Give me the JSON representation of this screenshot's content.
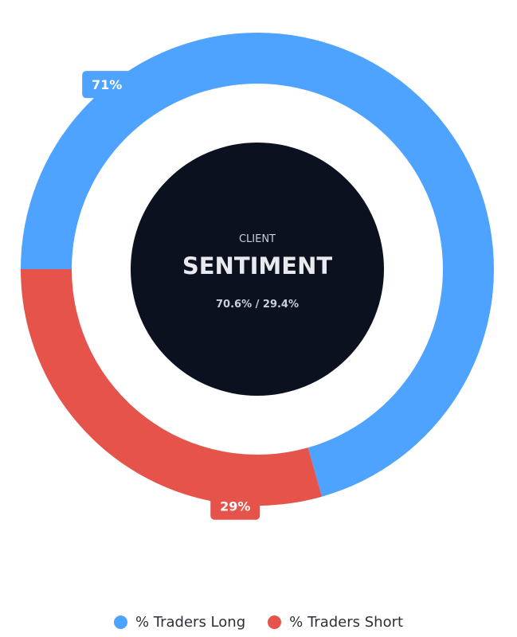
{
  "chart_data": {
    "type": "pie",
    "variant": "doughnut",
    "series": [
      {
        "name": "% Traders Long",
        "value": 70.6,
        "label": "71%",
        "color": "#4da3ff"
      },
      {
        "name": "% Traders Short",
        "value": 29.4,
        "label": "29%",
        "color": "#e5534b"
      }
    ],
    "start_angle": "9 o'clock, clockwise",
    "legend_position": "bottom"
  },
  "center": {
    "subtitle": "CLIENT",
    "title": "SENTIMENT",
    "ratio": "70.6% / 29.4%",
    "background": "#0c1120"
  }
}
